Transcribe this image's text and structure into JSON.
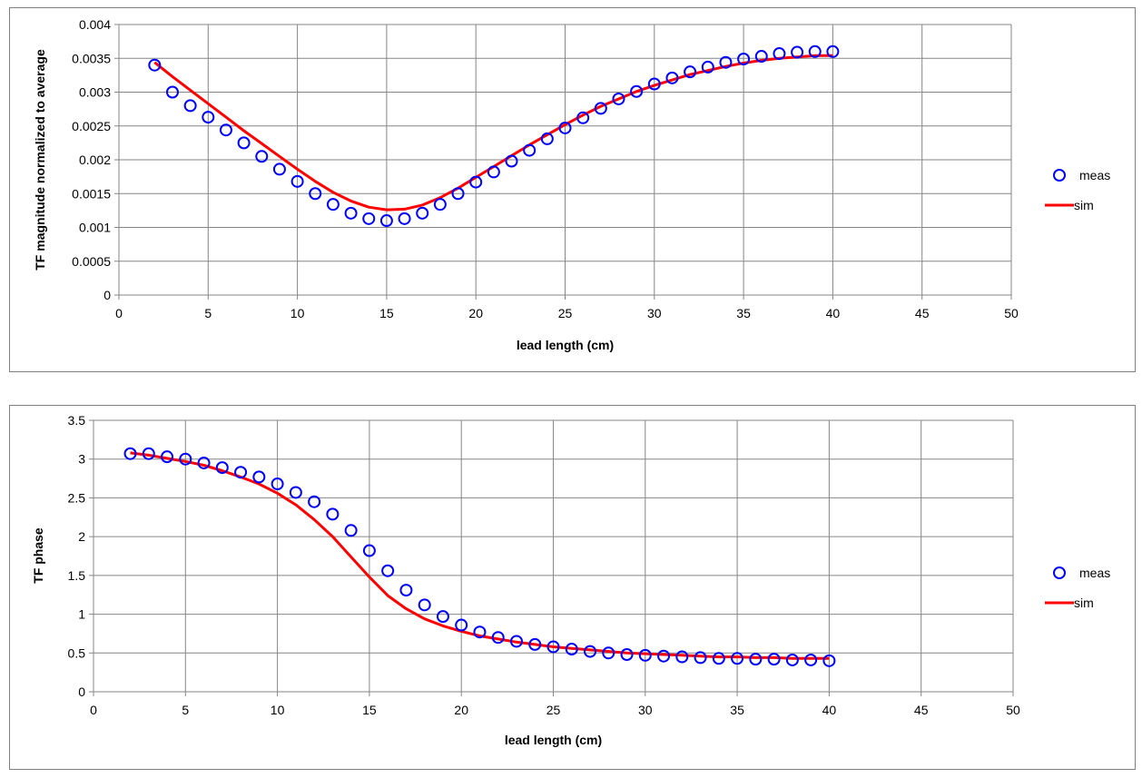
{
  "chart_data": [
    {
      "type": "scatter",
      "xlabel": "lead length (cm)",
      "ylabel": "TF  magnitude normalized to average",
      "xlim": [
        0,
        50
      ],
      "ylim": [
        0,
        0.004
      ],
      "x_ticks": [
        "0",
        "5",
        "10",
        "15",
        "20",
        "25",
        "30",
        "35",
        "40",
        "45",
        "50"
      ],
      "y_ticks": [
        "0",
        "0.0005",
        "0.001",
        "0.0015",
        "0.002",
        "0.0025",
        "0.003",
        "0.0035",
        "0.004"
      ],
      "grid": true,
      "legend": "right",
      "series": [
        {
          "name": "meas",
          "style": "markers",
          "color": "#0000ff",
          "x": [
            2,
            3,
            4,
            5,
            6,
            7,
            8,
            9,
            10,
            11,
            12,
            13,
            14,
            15,
            16,
            17,
            18,
            19,
            20,
            21,
            22,
            23,
            24,
            25,
            26,
            27,
            28,
            29,
            30,
            31,
            32,
            33,
            34,
            35,
            36,
            37,
            38,
            39,
            40
          ],
          "y": [
            0.0034,
            0.003,
            0.0028,
            0.00263,
            0.00244,
            0.00225,
            0.00205,
            0.00186,
            0.00168,
            0.0015,
            0.00134,
            0.00121,
            0.00113,
            0.0011,
            0.00113,
            0.00121,
            0.00134,
            0.0015,
            0.00167,
            0.00182,
            0.00198,
            0.00214,
            0.00231,
            0.00247,
            0.00262,
            0.00276,
            0.0029,
            0.00301,
            0.00312,
            0.00321,
            0.0033,
            0.00337,
            0.00344,
            0.00349,
            0.00353,
            0.00357,
            0.00359,
            0.0036,
            0.0036
          ]
        },
        {
          "name": "sim",
          "style": "line",
          "color": "#ff0000",
          "x": [
            2,
            3,
            4,
            5,
            6,
            7,
            8,
            9,
            10,
            11,
            12,
            13,
            14,
            15,
            16,
            17,
            18,
            19,
            20,
            21,
            22,
            23,
            24,
            25,
            26,
            27,
            28,
            29,
            30,
            31,
            32,
            33,
            34,
            35,
            36,
            37,
            38,
            39,
            40
          ],
          "y": [
            0.00344,
            0.00323,
            0.00303,
            0.00283,
            0.00263,
            0.00243,
            0.00224,
            0.00205,
            0.00186,
            0.00168,
            0.00152,
            0.00139,
            0.0013,
            0.00126,
            0.00127,
            0.00133,
            0.00144,
            0.00158,
            0.00174,
            0.0019,
            0.00206,
            0.00222,
            0.00237,
            0.00252,
            0.00266,
            0.00279,
            0.0029,
            0.00301,
            0.0031,
            0.00318,
            0.00326,
            0.00332,
            0.00338,
            0.00343,
            0.00347,
            0.0035,
            0.00352,
            0.00354,
            0.00354
          ]
        }
      ]
    },
    {
      "type": "scatter",
      "xlabel": "lead length (cm)",
      "ylabel": "TF  phase",
      "xlim": [
        0,
        50
      ],
      "ylim": [
        0,
        3.5
      ],
      "x_ticks": [
        "0",
        "5",
        "10",
        "15",
        "20",
        "25",
        "30",
        "35",
        "40",
        "45",
        "50"
      ],
      "y_ticks": [
        "0",
        "0.5",
        "1",
        "1.5",
        "2",
        "2.5",
        "3",
        "3.5"
      ],
      "grid": true,
      "legend": "right",
      "series": [
        {
          "name": "meas",
          "style": "markers",
          "color": "#0000ff",
          "x": [
            2,
            3,
            4,
            5,
            6,
            7,
            8,
            9,
            10,
            11,
            12,
            13,
            14,
            15,
            16,
            17,
            18,
            19,
            20,
            21,
            22,
            23,
            24,
            25,
            26,
            27,
            28,
            29,
            30,
            31,
            32,
            33,
            34,
            35,
            36,
            37,
            38,
            39,
            40
          ],
          "y": [
            3.07,
            3.07,
            3.03,
            3.0,
            2.95,
            2.89,
            2.83,
            2.77,
            2.68,
            2.57,
            2.45,
            2.29,
            2.08,
            1.82,
            1.56,
            1.31,
            1.12,
            0.97,
            0.86,
            0.77,
            0.7,
            0.65,
            0.61,
            0.58,
            0.55,
            0.52,
            0.5,
            0.48,
            0.47,
            0.46,
            0.45,
            0.44,
            0.43,
            0.43,
            0.42,
            0.42,
            0.41,
            0.41,
            0.4
          ]
        },
        {
          "name": "sim",
          "style": "line",
          "color": "#ff0000",
          "x": [
            2,
            3,
            4,
            5,
            6,
            7,
            8,
            9,
            10,
            11,
            12,
            13,
            14,
            15,
            16,
            17,
            18,
            19,
            20,
            21,
            22,
            23,
            24,
            25,
            26,
            27,
            28,
            29,
            30,
            31,
            32,
            33,
            34,
            35,
            36,
            37,
            38,
            39,
            40
          ],
          "y": [
            3.08,
            3.05,
            3.01,
            2.97,
            2.92,
            2.85,
            2.77,
            2.68,
            2.56,
            2.41,
            2.22,
            2.0,
            1.74,
            1.48,
            1.24,
            1.07,
            0.94,
            0.85,
            0.78,
            0.72,
            0.68,
            0.64,
            0.61,
            0.58,
            0.56,
            0.54,
            0.52,
            0.5,
            0.49,
            0.48,
            0.47,
            0.46,
            0.45,
            0.45,
            0.44,
            0.44,
            0.43,
            0.43,
            0.43
          ]
        }
      ]
    }
  ]
}
